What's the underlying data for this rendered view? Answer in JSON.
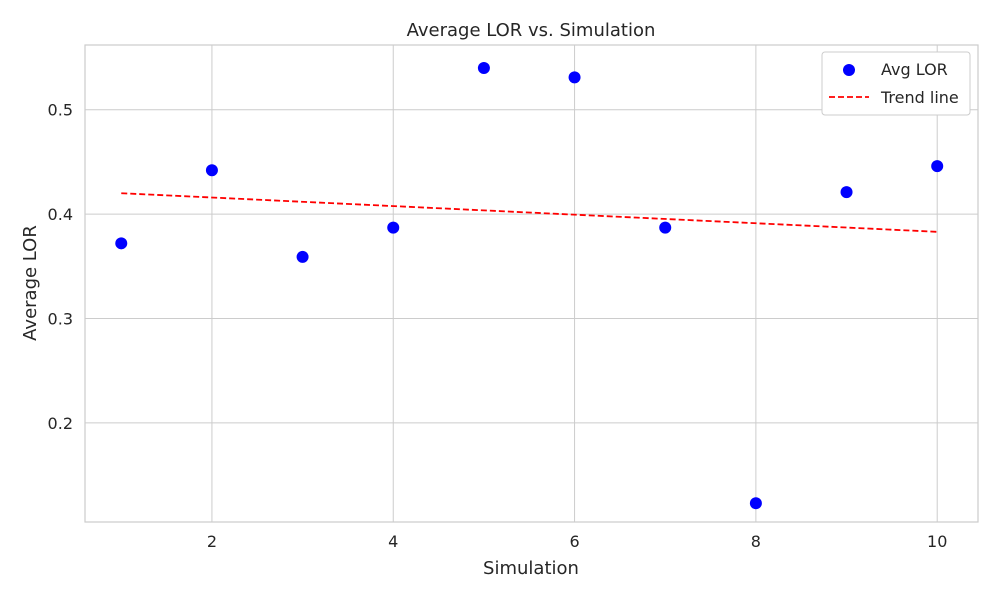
{
  "chart_data": {
    "type": "scatter",
    "title": "Average LOR vs. Simulation",
    "xlabel": "Simulation",
    "ylabel": "Average LOR",
    "xlim": [
      0.6,
      10.45
    ],
    "ylim": [
      0.105,
      0.562
    ],
    "xticks": [
      2,
      4,
      6,
      8,
      10
    ],
    "yticks": [
      0.2,
      0.3,
      0.4,
      0.5
    ],
    "grid": true,
    "legend_position": "top-right",
    "series": [
      {
        "name": "Avg LOR",
        "kind": "scatter",
        "color": "#0000ff",
        "x": [
          1,
          2,
          3,
          4,
          5,
          6,
          7,
          8,
          9,
          10
        ],
        "y": [
          0.372,
          0.442,
          0.359,
          0.387,
          0.54,
          0.531,
          0.387,
          0.123,
          0.421,
          0.446
        ]
      },
      {
        "name": "Trend line",
        "kind": "line",
        "style": "dashed",
        "color": "#ff0000",
        "x": [
          1,
          10
        ],
        "y": [
          0.42,
          0.383
        ]
      }
    ]
  }
}
